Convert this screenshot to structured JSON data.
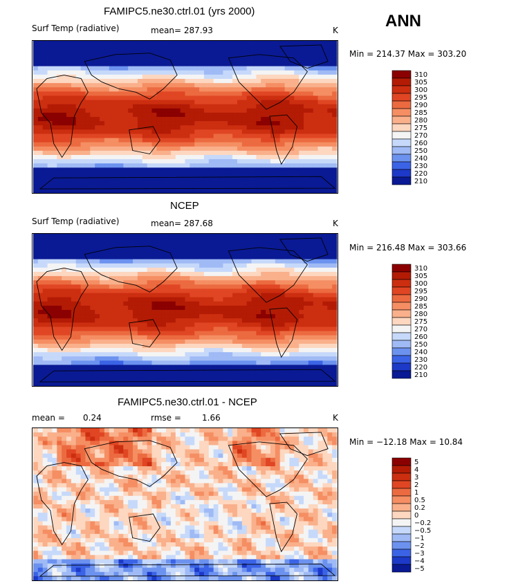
{
  "season": "ANN",
  "panels": [
    {
      "title": "FAMIPC5.ne30.ctrl.01 (yrs 2000)",
      "left_label": "Surf Temp (radiative)",
      "center_label": "mean= 287.93",
      "units": "K",
      "minmax": "Min = 214.37 Max = 303.20",
      "cbar": [
        "310",
        "305",
        "300",
        "295",
        "290",
        "285",
        "280",
        "275",
        "270",
        "260",
        "250",
        "240",
        "230",
        "220",
        "210"
      ],
      "cbar_colors": [
        "#8b0000",
        "#b31b05",
        "#cc2e10",
        "#e04623",
        "#ec6a40",
        "#f58e63",
        "#f9b08b",
        "#fdd7c0",
        "#f4f4f4",
        "#c6d9fa",
        "#9fbaf5",
        "#6c92ef",
        "#3b63e6",
        "#1c39c8",
        "#0a1a94"
      ],
      "kind": "abs"
    },
    {
      "title": "NCEP",
      "left_label": "Surf Temp (radiative)",
      "center_label": "mean= 287.68",
      "units": "K",
      "minmax": "Min = 216.48 Max = 303.66",
      "cbar": [
        "310",
        "305",
        "300",
        "295",
        "290",
        "285",
        "280",
        "275",
        "270",
        "260",
        "250",
        "240",
        "230",
        "220",
        "210"
      ],
      "cbar_colors": [
        "#8b0000",
        "#b31b05",
        "#cc2e10",
        "#e04623",
        "#ec6a40",
        "#f58e63",
        "#f9b08b",
        "#fdd7c0",
        "#f4f4f4",
        "#c6d9fa",
        "#9fbaf5",
        "#6c92ef",
        "#3b63e6",
        "#1c39c8",
        "#0a1a94"
      ],
      "kind": "abs"
    },
    {
      "title": "FAMIPC5.ne30.ctrl.01 - NCEP",
      "left_label": "mean =",
      "left_value": "0.24",
      "center_label": "rmse =",
      "center_value": "1.66",
      "units": "K",
      "minmax": "Min = −12.18 Max = 10.84",
      "cbar": [
        "5",
        "4",
        "3",
        "2",
        "1",
        "0.5",
        "0.2",
        "0",
        "−0.2",
        "−0.5",
        "−1",
        "−2",
        "−3",
        "−4",
        "−5"
      ],
      "cbar_colors": [
        "#8b0000",
        "#b31b05",
        "#cc2e10",
        "#e04623",
        "#ec6a40",
        "#f58e63",
        "#f9b08b",
        "#fdd7c0",
        "#f4f4f4",
        "#c6d9fa",
        "#9fbaf5",
        "#6c92ef",
        "#3b63e6",
        "#1c39c8",
        "#0a1a94"
      ],
      "kind": "diff"
    }
  ],
  "chart_data": [
    {
      "type": "heatmap",
      "title": "FAMIPC5.ne30.ctrl.01 (yrs 2000)",
      "field": "Surf Temp (radiative)",
      "units": "K",
      "mean": 287.93,
      "min": 214.37,
      "max": 303.2,
      "contour_levels": [
        210,
        220,
        230,
        240,
        250,
        260,
        270,
        275,
        280,
        285,
        290,
        295,
        300,
        305,
        310
      ]
    },
    {
      "type": "heatmap",
      "title": "NCEP",
      "field": "Surf Temp (radiative)",
      "units": "K",
      "mean": 287.68,
      "min": 216.48,
      "max": 303.66,
      "contour_levels": [
        210,
        220,
        230,
        240,
        250,
        260,
        270,
        275,
        280,
        285,
        290,
        295,
        300,
        305,
        310
      ]
    },
    {
      "type": "heatmap",
      "title": "FAMIPC5.ne30.ctrl.01 - NCEP",
      "units": "K",
      "mean": 0.24,
      "rmse": 1.66,
      "min": -12.18,
      "max": 10.84,
      "contour_levels": [
        -5,
        -4,
        -3,
        -2,
        -1,
        -0.5,
        -0.2,
        0,
        0.2,
        0.5,
        1,
        2,
        3,
        4,
        5
      ]
    }
  ]
}
